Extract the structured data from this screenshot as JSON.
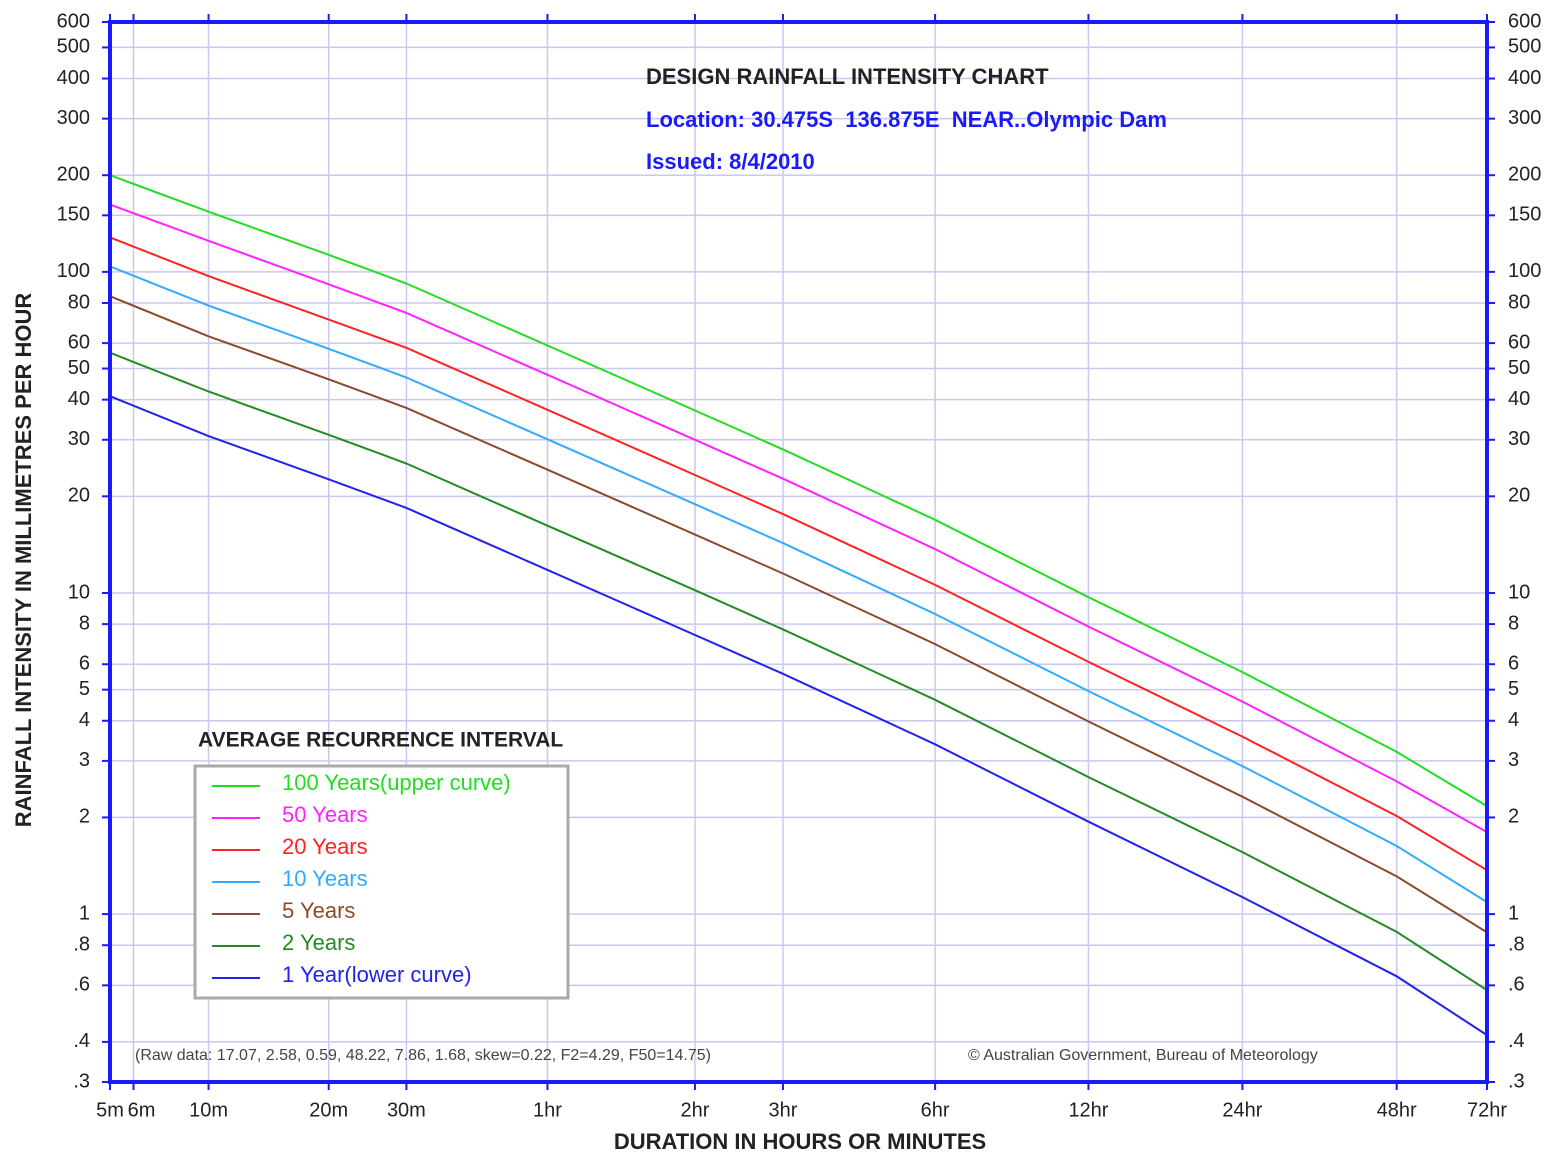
{
  "chart_data": {
    "type": "line",
    "title": "DESIGN RAINFALL INTENSITY CHART",
    "subtitle": "Location: 30.475S  136.875E  NEAR..Olympic Dam",
    "issued": "Issued: 8/4/2010",
    "x_label": "DURATION IN HOURS OR MINUTES",
    "y_label": "RAINFALL INTENSITY IN MILLIMETRES PER HOUR",
    "legend_title": "AVERAGE RECURRENCE INTERVAL",
    "raw_data_note": "(Raw data: 17.07, 2.58, 0.59, 48.22, 7.86, 1.68, skew=0.22, F2=4.29, F50=14.75)",
    "copyright": "© Australian Government, Bureau of Meteorology",
    "x_log": true,
    "y_log": true,
    "grid": true,
    "legend": "lower left",
    "x": [
      5,
      10,
      20,
      30,
      60,
      120,
      180,
      360,
      720,
      1440,
      2880,
      4320
    ],
    "xlim": [
      5,
      4320
    ],
    "xticks": [
      {
        "value": 5,
        "label": "5m"
      },
      {
        "value": 6,
        "label": "6m"
      },
      {
        "value": 10,
        "label": "10m"
      },
      {
        "value": 20,
        "label": "20m"
      },
      {
        "value": 30,
        "label": "30m"
      },
      {
        "value": 60,
        "label": "1hr"
      },
      {
        "value": 120,
        "label": "2hr"
      },
      {
        "value": 180,
        "label": "3hr"
      },
      {
        "value": 360,
        "label": "6hr"
      },
      {
        "value": 720,
        "label": "12hr"
      },
      {
        "value": 1440,
        "label": "24hr"
      },
      {
        "value": 2880,
        "label": "48hr"
      },
      {
        "value": 4320,
        "label": "72hr"
      }
    ],
    "ylim": [
      0.3,
      600
    ],
    "yticks": [
      600,
      500,
      400,
      300,
      200,
      150,
      100,
      80,
      60,
      50,
      40,
      30,
      20,
      10,
      8,
      6,
      5,
      4,
      3,
      2,
      1,
      {
        "value": 0.8,
        "label": ".8"
      },
      {
        "value": 0.6,
        "label": ".6"
      },
      {
        "value": 0.4,
        "label": ".4"
      },
      {
        "value": 0.3,
        "label": ".3"
      }
    ],
    "series": [
      {
        "name": "100 Years(upper curve)",
        "color": "#22dd22",
        "values": [
          200,
          154,
          113,
          92,
          59,
          37,
          28,
          16.9,
          9.7,
          5.67,
          3.2,
          2.17
        ]
      },
      {
        "name": "50 Years",
        "color": "#ff22ff",
        "values": [
          162,
          125,
          91.5,
          74.5,
          47.8,
          30,
          22.7,
          13.7,
          7.86,
          4.59,
          2.59,
          1.8
        ]
      },
      {
        "name": "20 Years",
        "color": "#ff2222",
        "values": [
          128,
          97,
          71,
          58,
          37.2,
          23.3,
          17.6,
          10.6,
          6.1,
          3.57,
          2.02,
          1.37
        ]
      },
      {
        "name": "10 Years",
        "color": "#33aaff",
        "values": [
          104,
          78.5,
          57.6,
          46.9,
          30.1,
          18.9,
          14.3,
          8.6,
          4.95,
          2.89,
          1.63,
          1.09
        ]
      },
      {
        "name": "5 Years",
        "color": "#8b4a2b",
        "values": [
          84,
          63,
          46.3,
          37.7,
          24.2,
          15.2,
          11.5,
          6.93,
          3.98,
          2.32,
          1.31,
          0.877
        ]
      },
      {
        "name": "2 Years",
        "color": "#228b22",
        "values": [
          56,
          42.4,
          31.1,
          25.3,
          16.2,
          10.2,
          7.7,
          4.65,
          2.67,
          1.56,
          0.88,
          0.58
        ]
      },
      {
        "name": "1 Year(lower curve)",
        "color": "#2222ee",
        "values": [
          41,
          30.8,
          22.6,
          18.4,
          11.8,
          7.4,
          5.6,
          3.38,
          1.94,
          1.13,
          0.64,
          0.42
        ]
      }
    ]
  }
}
